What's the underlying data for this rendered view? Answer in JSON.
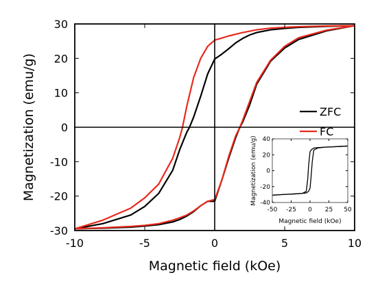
{
  "chart_data": [
    {
      "type": "line",
      "xlabel": "Magnetic field (kOe)",
      "ylabel": "Magnetization (emu/g)",
      "xlim": [
        -10,
        10
      ],
      "ylim": [
        -30,
        30
      ],
      "xticks": [
        -10,
        -5,
        0,
        5,
        10
      ],
      "yticks": [
        -30,
        -20,
        -10,
        0,
        10,
        20,
        30
      ],
      "xtick_labels": [
        "-10",
        "-5",
        "0",
        "5",
        "10"
      ],
      "ytick_labels": [
        "-30",
        "-20",
        "-10",
        "0",
        "10",
        "20",
        "30"
      ],
      "grid": false,
      "legend_position": "right",
      "zero_lines": true,
      "series": [
        {
          "name": "ZFC",
          "color": "#000000",
          "descending": {
            "x": [
              10,
              8,
              6,
              5,
              4,
              3,
              2.5,
              2,
              1.5,
              1,
              0.5,
              0,
              -0.5,
              -1,
              -1.5,
              -1.8,
              -2,
              -2.5,
              -3,
              -4,
              -5,
              -6,
              -8,
              -10
            ],
            "y": [
              29.5,
              29.3,
              29.0,
              28.7,
              28.3,
              27.5,
              26.8,
              25.8,
              24.5,
              22.8,
              21.2,
              19.8,
              15.5,
              9.0,
              3.0,
              0.0,
              -1.5,
              -6.5,
              -12.5,
              -19.2,
              -23.0,
              -25.5,
              -28.0,
              -29.5
            ]
          },
          "ascending": {
            "x": [
              -10,
              -8,
              -6,
              -5,
              -4,
              -3,
              -2.5,
              -2,
              -1.5,
              -1,
              -0.5,
              0,
              0.5,
              1,
              1.5,
              1.8,
              2,
              2.5,
              3,
              4,
              5,
              6,
              8,
              10
            ],
            "y": [
              -29.5,
              -29.3,
              -29.0,
              -28.7,
              -28.3,
              -27.5,
              -26.8,
              -25.8,
              -24.5,
              -22.8,
              -21.5,
              -21.5,
              -15.5,
              -9.0,
              -3.0,
              0.0,
              1.5,
              6.5,
              12.5,
              19.2,
              23.0,
              25.5,
              28.0,
              29.5
            ]
          }
        },
        {
          "name": "FC",
          "color": "#e8291c",
          "descending": {
            "x": [
              10,
              8,
              6,
              5,
              4,
              3,
              2.5,
              2,
              1.5,
              1,
              0.5,
              0,
              -0.5,
              -1,
              -1.5,
              -2,
              -2.3,
              -2.5,
              -3,
              -4,
              -5,
              -6,
              -8,
              -10
            ],
            "y": [
              29.5,
              29.4,
              29.2,
              29.0,
              28.8,
              28.3,
              27.9,
              27.5,
              27.0,
              26.5,
              25.9,
              25.3,
              23.5,
              20.0,
              14.5,
              6.0,
              0.0,
              -3.0,
              -9.0,
              -16.5,
              -20.5,
              -23.5,
              -27.0,
              -29.5
            ]
          },
          "ascending": {
            "x": [
              -10,
              -8,
              -6,
              -5,
              -4,
              -3,
              -2.5,
              -2,
              -1.5,
              -1,
              -0.5,
              0,
              0.5,
              1,
              1.5,
              1.8,
              2,
              2.5,
              3,
              4,
              5,
              6,
              8,
              10
            ],
            "y": [
              -29.5,
              -29.2,
              -28.8,
              -28.5,
              -28.0,
              -27.0,
              -26.3,
              -25.5,
              -24.3,
              -22.8,
              -21.5,
              -21.0,
              -15.5,
              -8.5,
              -2.5,
              0.0,
              2.0,
              7.5,
              13.0,
              19.5,
              23.5,
              26.0,
              28.2,
              29.5
            ]
          }
        }
      ]
    },
    {
      "type": "line",
      "inset": true,
      "xlabel": "Magnetic field (kOe)",
      "ylabel": "Magnetization (emu/g)",
      "xlim": [
        -50,
        50
      ],
      "ylim": [
        -40,
        40
      ],
      "xticks": [
        -50,
        -25,
        0,
        25,
        50
      ],
      "yticks": [
        -40,
        -20,
        0,
        20,
        40
      ],
      "xtick_labels": [
        "-50",
        "-25",
        "0",
        "25",
        "50"
      ],
      "ytick_labels": [
        "-40",
        "-20",
        "0",
        "20",
        "40"
      ],
      "grid": false,
      "series": [
        {
          "color": "#000000",
          "descending": {
            "x": [
              50,
              40,
              30,
              20,
              10,
              5,
              2,
              0,
              -1,
              -2,
              -3,
              -5,
              -10,
              -20,
              -30,
              -40,
              -50
            ],
            "y": [
              31.0,
              30.5,
              30.0,
              29.6,
              29.0,
              28.5,
              26.5,
              24.0,
              15.0,
              5.0,
              -10.0,
              -26.0,
              -28.5,
              -29.2,
              -29.7,
              -30.2,
              -30.8
            ]
          },
          "ascending": {
            "x": [
              -50,
              -40,
              -30,
              -20,
              -10,
              -5,
              -2,
              0,
              1,
              2,
              3,
              5,
              10,
              20,
              30,
              40,
              50
            ],
            "y": [
              -30.8,
              -30.2,
              -29.7,
              -29.2,
              -28.5,
              -28.0,
              -26.0,
              -22.0,
              -12.0,
              0.0,
              12.0,
              26.0,
              28.5,
              29.6,
              30.0,
              30.5,
              31.0
            ]
          }
        }
      ]
    }
  ]
}
